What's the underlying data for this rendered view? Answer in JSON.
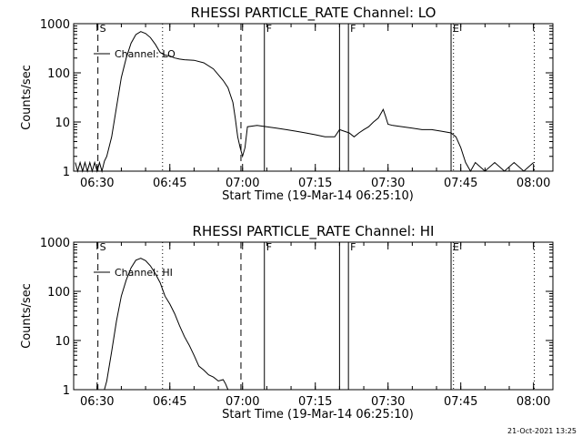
{
  "footer": {
    "timestamp": "21-Oct-2021 13:25"
  },
  "chart_data": [
    {
      "type": "line",
      "title": "RHESSI PARTICLE_RATE Channel: LO",
      "xlabel": "Start Time (19-Mar-14 06:25:10)",
      "ylabel": "Counts/sec",
      "y_scale": "log",
      "ylim": [
        1,
        1000
      ],
      "xlim": [
        "06:25:10",
        "08:04:00"
      ],
      "x_ticks": [
        "06:30",
        "06:45",
        "07:00",
        "07:15",
        "07:30",
        "07:45",
        "08:00"
      ],
      "y_ticks": [
        "1",
        "10",
        "100",
        "1000"
      ],
      "grid": false,
      "legend": "top-left",
      "series": [
        {
          "name": "Channel: LO",
          "x": [
            "06:25:30",
            "06:26:00",
            "06:26:30",
            "06:27:00",
            "06:27:30",
            "06:28:00",
            "06:28:30",
            "06:29:00",
            "06:29:30",
            "06:30:00",
            "06:30:30",
            "06:31:00",
            "06:31:30",
            "06:32:00",
            "06:33:00",
            "06:34:00",
            "06:35:00",
            "06:36:00",
            "06:37:00",
            "06:38:00",
            "06:39:00",
            "06:40:00",
            "06:41:00",
            "06:42:00",
            "06:43:00",
            "06:44:00",
            "06:45:00",
            "06:46:00",
            "06:47:00",
            "06:48:00",
            "06:50:00",
            "06:52:00",
            "06:54:00",
            "06:56:00",
            "06:57:00",
            "06:58:00",
            "06:58:30",
            "06:59:00",
            "06:59:30",
            "07:00:00",
            "07:00:30",
            "07:01:00",
            "07:03:00",
            "07:05:00",
            "07:07:00",
            "07:09:00",
            "07:11:00",
            "07:13:00",
            "07:15:00",
            "07:17:00",
            "07:19:00",
            "07:20:00",
            "07:22:00",
            "07:23:00",
            "07:24:00",
            "07:25:00",
            "07:26:00",
            "07:27:00",
            "07:28:00",
            "07:29:00",
            "07:29:30",
            "07:30:00",
            "07:31:00",
            "07:33:00",
            "07:35:00",
            "07:37:00",
            "07:39:00",
            "07:41:00",
            "07:43:00",
            "07:44:00",
            "07:45:00",
            "07:46:00",
            "07:47:00",
            "07:48:00",
            "07:50:00",
            "07:52:00",
            "07:54:00",
            "07:56:00",
            "07:58:00",
            "08:00:00"
          ],
          "values": [
            1.5,
            1,
            1.5,
            1,
            1.5,
            1,
            1.5,
            1,
            1.5,
            1,
            1.5,
            1,
            1.6,
            2,
            5,
            20,
            80,
            200,
            400,
            600,
            690,
            630,
            520,
            380,
            260,
            230,
            220,
            200,
            190,
            185,
            180,
            160,
            120,
            70,
            50,
            25,
            12,
            5,
            3,
            2,
            3,
            8,
            8.5,
            8,
            7.5,
            7,
            6.5,
            6,
            5.5,
            5,
            5,
            7,
            6,
            5,
            6,
            7,
            8,
            10,
            12,
            18,
            13,
            9,
            8.5,
            8,
            7.5,
            7,
            7,
            6.5,
            6,
            5,
            3,
            1.5,
            1,
            1.5,
            1,
            1.5,
            1,
            1.5,
            1,
            1.5
          ]
        }
      ]
    },
    {
      "type": "line",
      "title": "RHESSI PARTICLE_RATE Channel: HI",
      "xlabel": "Start Time (19-Mar-14 06:25:10)",
      "ylabel": "Counts/sec",
      "y_scale": "log",
      "ylim": [
        1,
        1000
      ],
      "xlim": [
        "06:25:10",
        "08:04:00"
      ],
      "x_ticks": [
        "06:30",
        "06:45",
        "07:00",
        "07:15",
        "07:30",
        "07:45",
        "08:00"
      ],
      "y_ticks": [
        "1",
        "10",
        "100",
        "1000"
      ],
      "grid": false,
      "legend": "top-left",
      "series": [
        {
          "name": "Channel: HI",
          "x": [
            "06:31:30",
            "06:32:00",
            "06:33:00",
            "06:34:00",
            "06:35:00",
            "06:36:00",
            "06:37:00",
            "06:38:00",
            "06:39:00",
            "06:40:00",
            "06:41:00",
            "06:42:00",
            "06:43:00",
            "06:44:00",
            "06:45:00",
            "06:46:00",
            "06:47:00",
            "06:48:00",
            "06:49:00",
            "06:50:00",
            "06:51:00",
            "06:52:00",
            "06:53:00",
            "06:54:00",
            "06:55:00",
            "06:56:00",
            "06:56:30",
            "06:57:00"
          ],
          "values": [
            1,
            1.5,
            6,
            25,
            80,
            170,
            300,
            430,
            470,
            420,
            330,
            230,
            150,
            80,
            55,
            35,
            20,
            12,
            8,
            5,
            3,
            2.5,
            2,
            1.8,
            1.5,
            1.6,
            1.3,
            1
          ]
        }
      ]
    }
  ],
  "markers": {
    "dashed": [
      "06:30:10",
      "06:59:40"
    ],
    "dotted": [
      "06:43:30",
      "07:43:30",
      "08:00:10"
    ],
    "solid": [
      "07:04:30",
      "07:20:00",
      "07:21:50",
      "07:43:00"
    ],
    "labels": [
      {
        "text": "S",
        "x": "06:30:10"
      },
      {
        "text": "F",
        "x": "07:04:30"
      },
      {
        "text": "F",
        "x": "07:21:50"
      },
      {
        "text": "E",
        "x": "07:43:00"
      }
    ]
  }
}
